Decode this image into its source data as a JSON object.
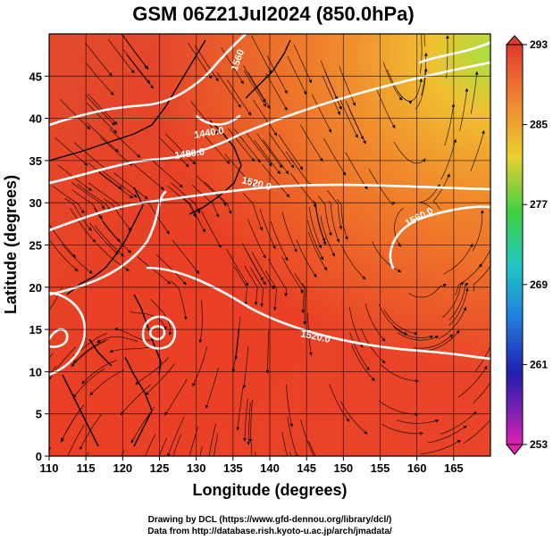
{
  "title": "GSM 06Z21Jul2024 (850.0hPa)",
  "xlabel": "Longitude (degrees)",
  "ylabel": "Latitude  (degrees)",
  "credits": {
    "line1": "Drawing by DCL (https://www.gfd-dennou.org/library/dcl/)",
    "line2": "Data from http://database.rish.kyoto-u.ac.jp/arch/jmadata/"
  },
  "chart_data": {
    "type": "heatmap",
    "description_axes": {
      "xlim": [
        110,
        170
      ],
      "ylim": [
        0,
        50
      ],
      "xticks": [
        110,
        115,
        120,
        125,
        130,
        135,
        140,
        145,
        150,
        155,
        160,
        165
      ],
      "xtick_labels": [
        "110",
        "115",
        "120",
        "125",
        "130",
        "135",
        "140",
        "145",
        "150",
        "155",
        "160",
        "165"
      ],
      "yticks": [
        0,
        5,
        10,
        15,
        20,
        25,
        30,
        35,
        40,
        45
      ],
      "ytick_labels": [
        "0",
        "5",
        "10",
        "15",
        "20",
        "25",
        "30",
        "35",
        "40",
        "45"
      ],
      "grid": true
    },
    "colorbar": {
      "min": 253,
      "max": 293,
      "tick_labels": [
        "293",
        "285",
        "277",
        "269",
        "261",
        "253"
      ],
      "tick_values": [
        293,
        285,
        277,
        269,
        261,
        253
      ]
    },
    "contour_labels": [
      "1440.0",
      "1480.0",
      "1520.0",
      "1560.0",
      "1520.0",
      "1560"
    ],
    "field": "temperature (K) with geopotential height contours and streamlines"
  },
  "colors": {
    "field_warm": "#e8402a",
    "field_orange": "#f07a2a",
    "field_yellowgreen": "#b8e03a",
    "contour": "#ffffff",
    "streamline": "#000000"
  }
}
